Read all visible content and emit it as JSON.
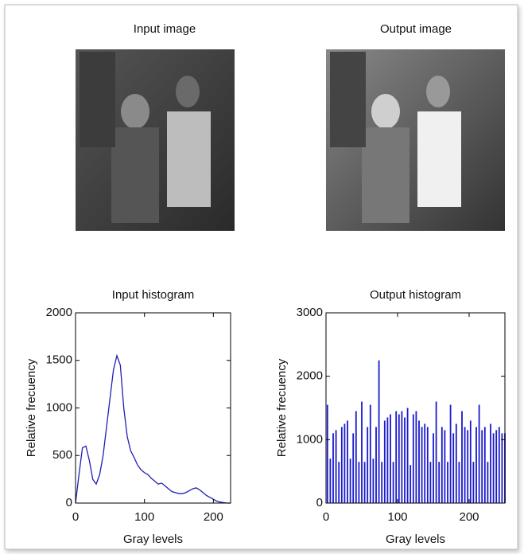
{
  "images": [
    {
      "title": "Input image"
    },
    {
      "title": "Output image"
    }
  ],
  "chart_data": [
    {
      "type": "line",
      "title": "Input histogram",
      "xlabel": "Gray levels",
      "ylabel": "Relative frecuency",
      "x": [
        0,
        5,
        10,
        15,
        20,
        25,
        30,
        35,
        40,
        45,
        50,
        55,
        60,
        65,
        70,
        75,
        80,
        85,
        90,
        95,
        100,
        105,
        110,
        115,
        120,
        125,
        130,
        135,
        140,
        145,
        150,
        155,
        160,
        165,
        170,
        175,
        180,
        185,
        190,
        195,
        200,
        205,
        210,
        215,
        220,
        225
      ],
      "series": [
        {
          "color": "#1f1fb4",
          "values": [
            0,
            300,
            580,
            600,
            450,
            250,
            200,
            300,
            500,
            800,
            1100,
            1400,
            1550,
            1450,
            1000,
            700,
            550,
            480,
            400,
            350,
            320,
            300,
            260,
            230,
            200,
            210,
            180,
            150,
            120,
            110,
            100,
            100,
            110,
            130,
            150,
            160,
            140,
            110,
            80,
            60,
            40,
            20,
            10,
            5,
            0,
            0
          ]
        }
      ],
      "xlim": [
        0,
        225
      ],
      "ylim": [
        0,
        2000
      ],
      "xticks": [
        0,
        100,
        200
      ],
      "yticks": [
        0,
        500,
        1000,
        1500,
        2000
      ]
    },
    {
      "type": "bar",
      "title": "Output histogram",
      "xlabel": "Gray levels",
      "ylabel": "Relative frecuency",
      "x": [
        2,
        6,
        10,
        14,
        18,
        22,
        26,
        30,
        34,
        38,
        42,
        46,
        50,
        54,
        58,
        62,
        66,
        70,
        74,
        78,
        82,
        86,
        90,
        94,
        98,
        102,
        106,
        110,
        114,
        118,
        122,
        126,
        130,
        134,
        138,
        142,
        146,
        150,
        154,
        158,
        162,
        166,
        170,
        174,
        178,
        182,
        186,
        190,
        194,
        198,
        202,
        206,
        210,
        214,
        218,
        222,
        226,
        230,
        234,
        238,
        242,
        246,
        250
      ],
      "series": [
        {
          "color": "#1a1acc",
          "values": [
            1550,
            700,
            1100,
            1150,
            650,
            1200,
            1250,
            1300,
            700,
            1100,
            1450,
            650,
            1600,
            650,
            1200,
            1550,
            700,
            1200,
            2250,
            650,
            1300,
            1350,
            1400,
            650,
            1450,
            1400,
            1450,
            1350,
            1500,
            600,
            1400,
            1450,
            1300,
            1200,
            1250,
            1200,
            650,
            1100,
            1600,
            650,
            1200,
            1150,
            650,
            1550,
            1100,
            1250,
            650,
            1450,
            1200,
            1150,
            1300,
            650,
            1200,
            1550,
            1150,
            1200,
            650,
            1250,
            1100,
            1150,
            1200,
            1100,
            1100
          ]
        }
      ],
      "xlim": [
        0,
        250
      ],
      "ylim": [
        0,
        3000
      ],
      "xticks": [
        0,
        100,
        200
      ],
      "yticks": [
        0,
        1000,
        2000,
        3000
      ]
    }
  ]
}
